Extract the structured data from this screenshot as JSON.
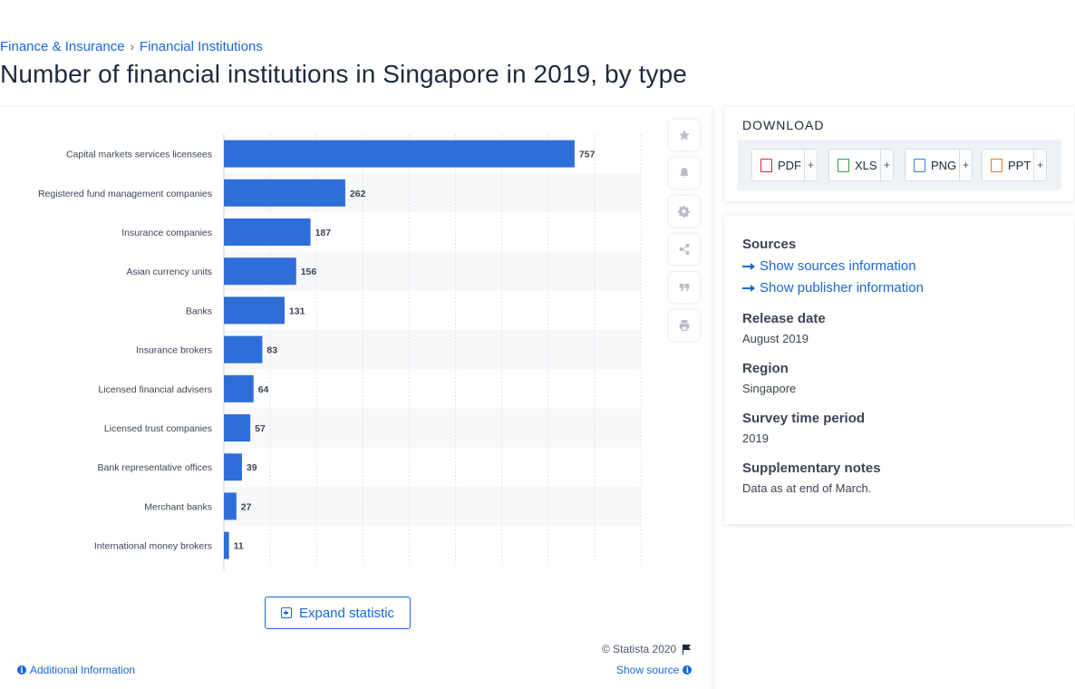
{
  "breadcrumb": {
    "item1": "Finance & Insurance",
    "separator": "›",
    "item2": "Financial Institutions"
  },
  "page_title": "Number of financial institutions in Singapore in 2019, by type",
  "chart_actions": {
    "icons": [
      "star-icon",
      "bell-icon",
      "gear-icon",
      "share-icon",
      "quote-icon",
      "print-icon"
    ],
    "expand_label": "Expand statistic",
    "copyright": "© Statista 2020",
    "additional_info": "Additional Information",
    "show_source": "Show source"
  },
  "chart_data": {
    "type": "bar",
    "orientation": "horizontal",
    "categories": [
      "Capital markets services licensees",
      "Registered fund management companies",
      "Insurance companies",
      "Asian currency units",
      "Banks",
      "Insurance brokers",
      "Licensed financial advisers",
      "Licensed trust companies",
      "Bank representative offices",
      "Merchant banks",
      "International money brokers"
    ],
    "values": [
      757,
      262,
      187,
      156,
      131,
      83,
      64,
      57,
      39,
      27,
      11
    ],
    "xlim": [
      0,
      900
    ],
    "grid": true,
    "bar_color": "#2f6ed9",
    "title": "",
    "xlabel": "",
    "ylabel": ""
  },
  "download": {
    "title": "DOWNLOAD",
    "buttons": [
      {
        "label": "PDF",
        "color": "#d9262c"
      },
      {
        "label": "XLS",
        "color": "#2e9e4c"
      },
      {
        "label": "PNG",
        "color": "#3a7fd6"
      },
      {
        "label": "PPT",
        "color": "#e8742c"
      }
    ],
    "plus": "+"
  },
  "meta": {
    "sources_h": "Sources",
    "show_sources": "Show sources information",
    "show_publisher": "Show publisher information",
    "release_h": "Release date",
    "release_v": "August 2019",
    "region_h": "Region",
    "region_v": "Singapore",
    "survey_h": "Survey time period",
    "survey_v": "2019",
    "notes_h": "Supplementary notes",
    "notes_v": "Data as at end of March."
  }
}
